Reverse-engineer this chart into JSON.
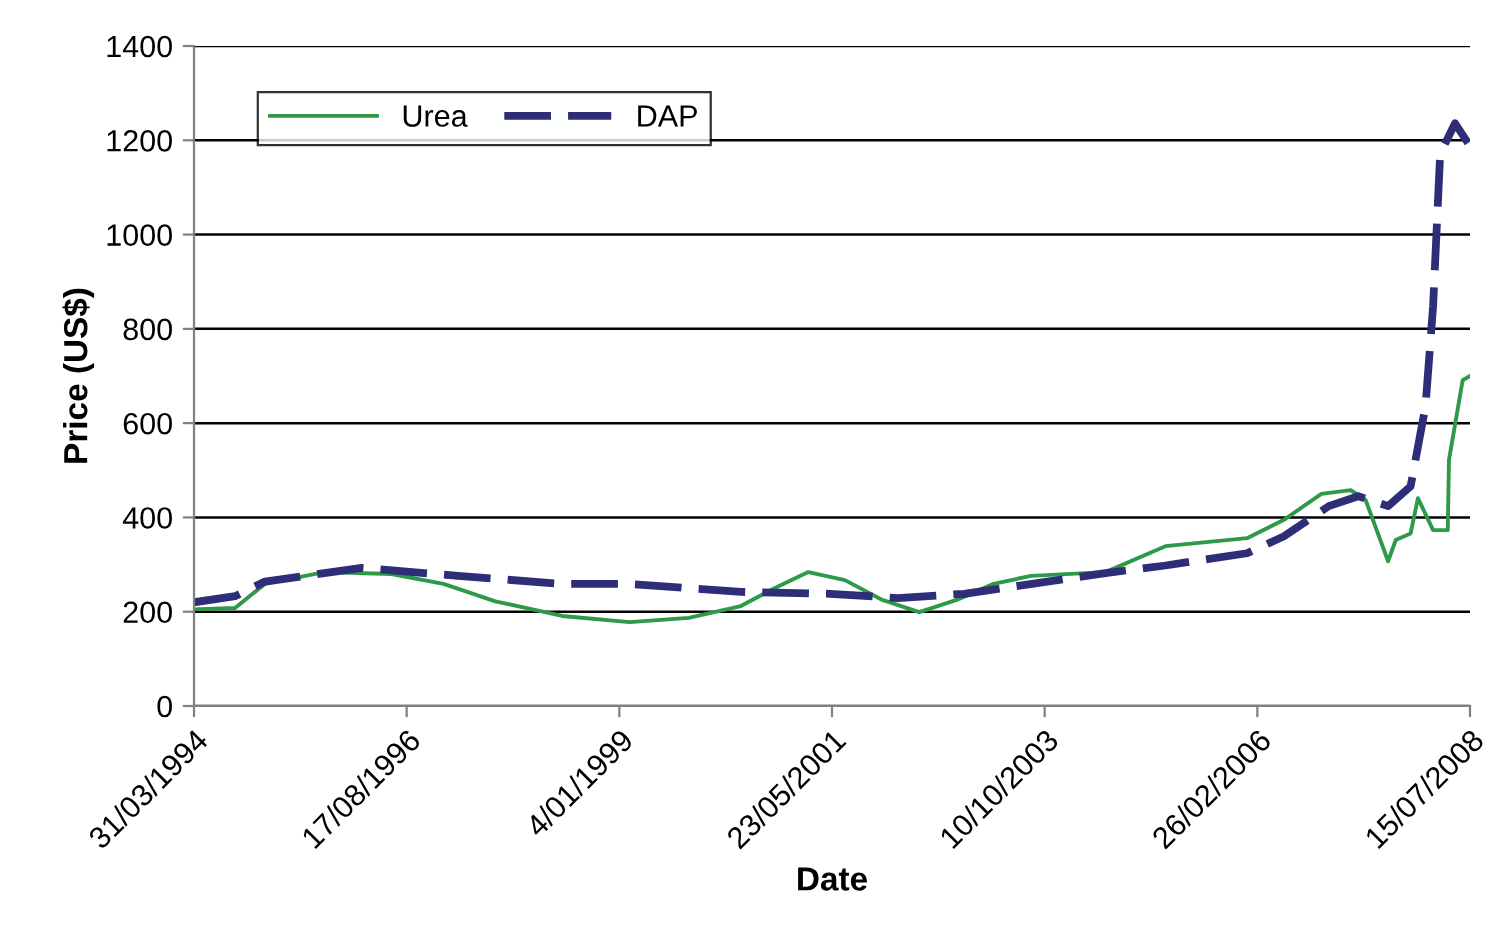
{
  "chart_data": {
    "type": "line",
    "xlabel": "Date",
    "ylabel": "Price (US$)",
    "xlim": [
      "1994-03-31",
      "2008-07-15"
    ],
    "xticks": [
      {
        "value": "1994-03-31",
        "label": "31/03/1994"
      },
      {
        "value": "1996-08-17",
        "label": "17/08/1996"
      },
      {
        "value": "1999-01-04",
        "label": "4/01/1999"
      },
      {
        "value": "2001-05-23",
        "label": "23/05/2001"
      },
      {
        "value": "2003-10-10",
        "label": "10/10/2003"
      },
      {
        "value": "2006-02-26",
        "label": "26/02/2006"
      },
      {
        "value": "2008-07-15",
        "label": "15/07/2008"
      }
    ],
    "ylim": [
      0,
      1400
    ],
    "yticks": [
      0,
      200,
      400,
      600,
      800,
      1000,
      1200,
      1400
    ],
    "grid": "y",
    "legend": "top left",
    "series": [
      {
        "name": "Urea",
        "color": "#2e9a48",
        "line_style": "solid",
        "x": [
          "1994-03-31",
          "1994-09",
          "1995-01",
          "1995-09",
          "1996-06",
          "1997-01",
          "1997-08",
          "1998-05",
          "1999-02",
          "1999-10",
          "2000-05",
          "2000-09",
          "2001-02",
          "2001-07",
          "2001-12",
          "2002-05",
          "2002-10",
          "2003-03",
          "2003-08",
          "2004-06",
          "2005-02",
          "2006-01",
          "2006-06",
          "2006-11",
          "2007-03",
          "2007-05",
          "2007-08",
          "2007-09",
          "2007-11",
          "2007-12",
          "2008-02",
          "2008-04",
          "2008-04-20",
          "2008-06",
          "2008-07-15"
        ],
        "values": [
          205,
          208,
          259,
          284,
          280,
          259,
          222,
          191,
          178,
          187,
          212,
          246,
          284,
          267,
          225,
          199,
          225,
          259,
          276,
          284,
          339,
          356,
          395,
          450,
          458,
          437,
          307,
          352,
          366,
          441,
          373,
          373,
          522,
          691,
          700
        ]
      },
      {
        "name": "DAP",
        "color": "#2e2d78",
        "line_style": "dashed",
        "x": [
          "1994-03-31",
          "1994-09",
          "1995-01",
          "1996-02",
          "1997-03",
          "1998-05",
          "1999-02",
          "2000-05",
          "2001-05",
          "2002-02",
          "2002-11",
          "2004-06",
          "2005-02",
          "2006-01",
          "2006-06",
          "2006-12",
          "2007-04",
          "2007-08",
          "2007-11",
          "2008-01",
          "2008-02-15",
          "2008-03",
          "2008-05",
          "2008-07-15"
        ],
        "values": [
          220,
          233,
          264,
          293,
          276,
          259,
          259,
          242,
          238,
          229,
          238,
          282,
          298,
          324,
          360,
          424,
          445,
          424,
          466,
          636,
          848,
          1172,
          1236,
          1188
        ]
      }
    ]
  }
}
